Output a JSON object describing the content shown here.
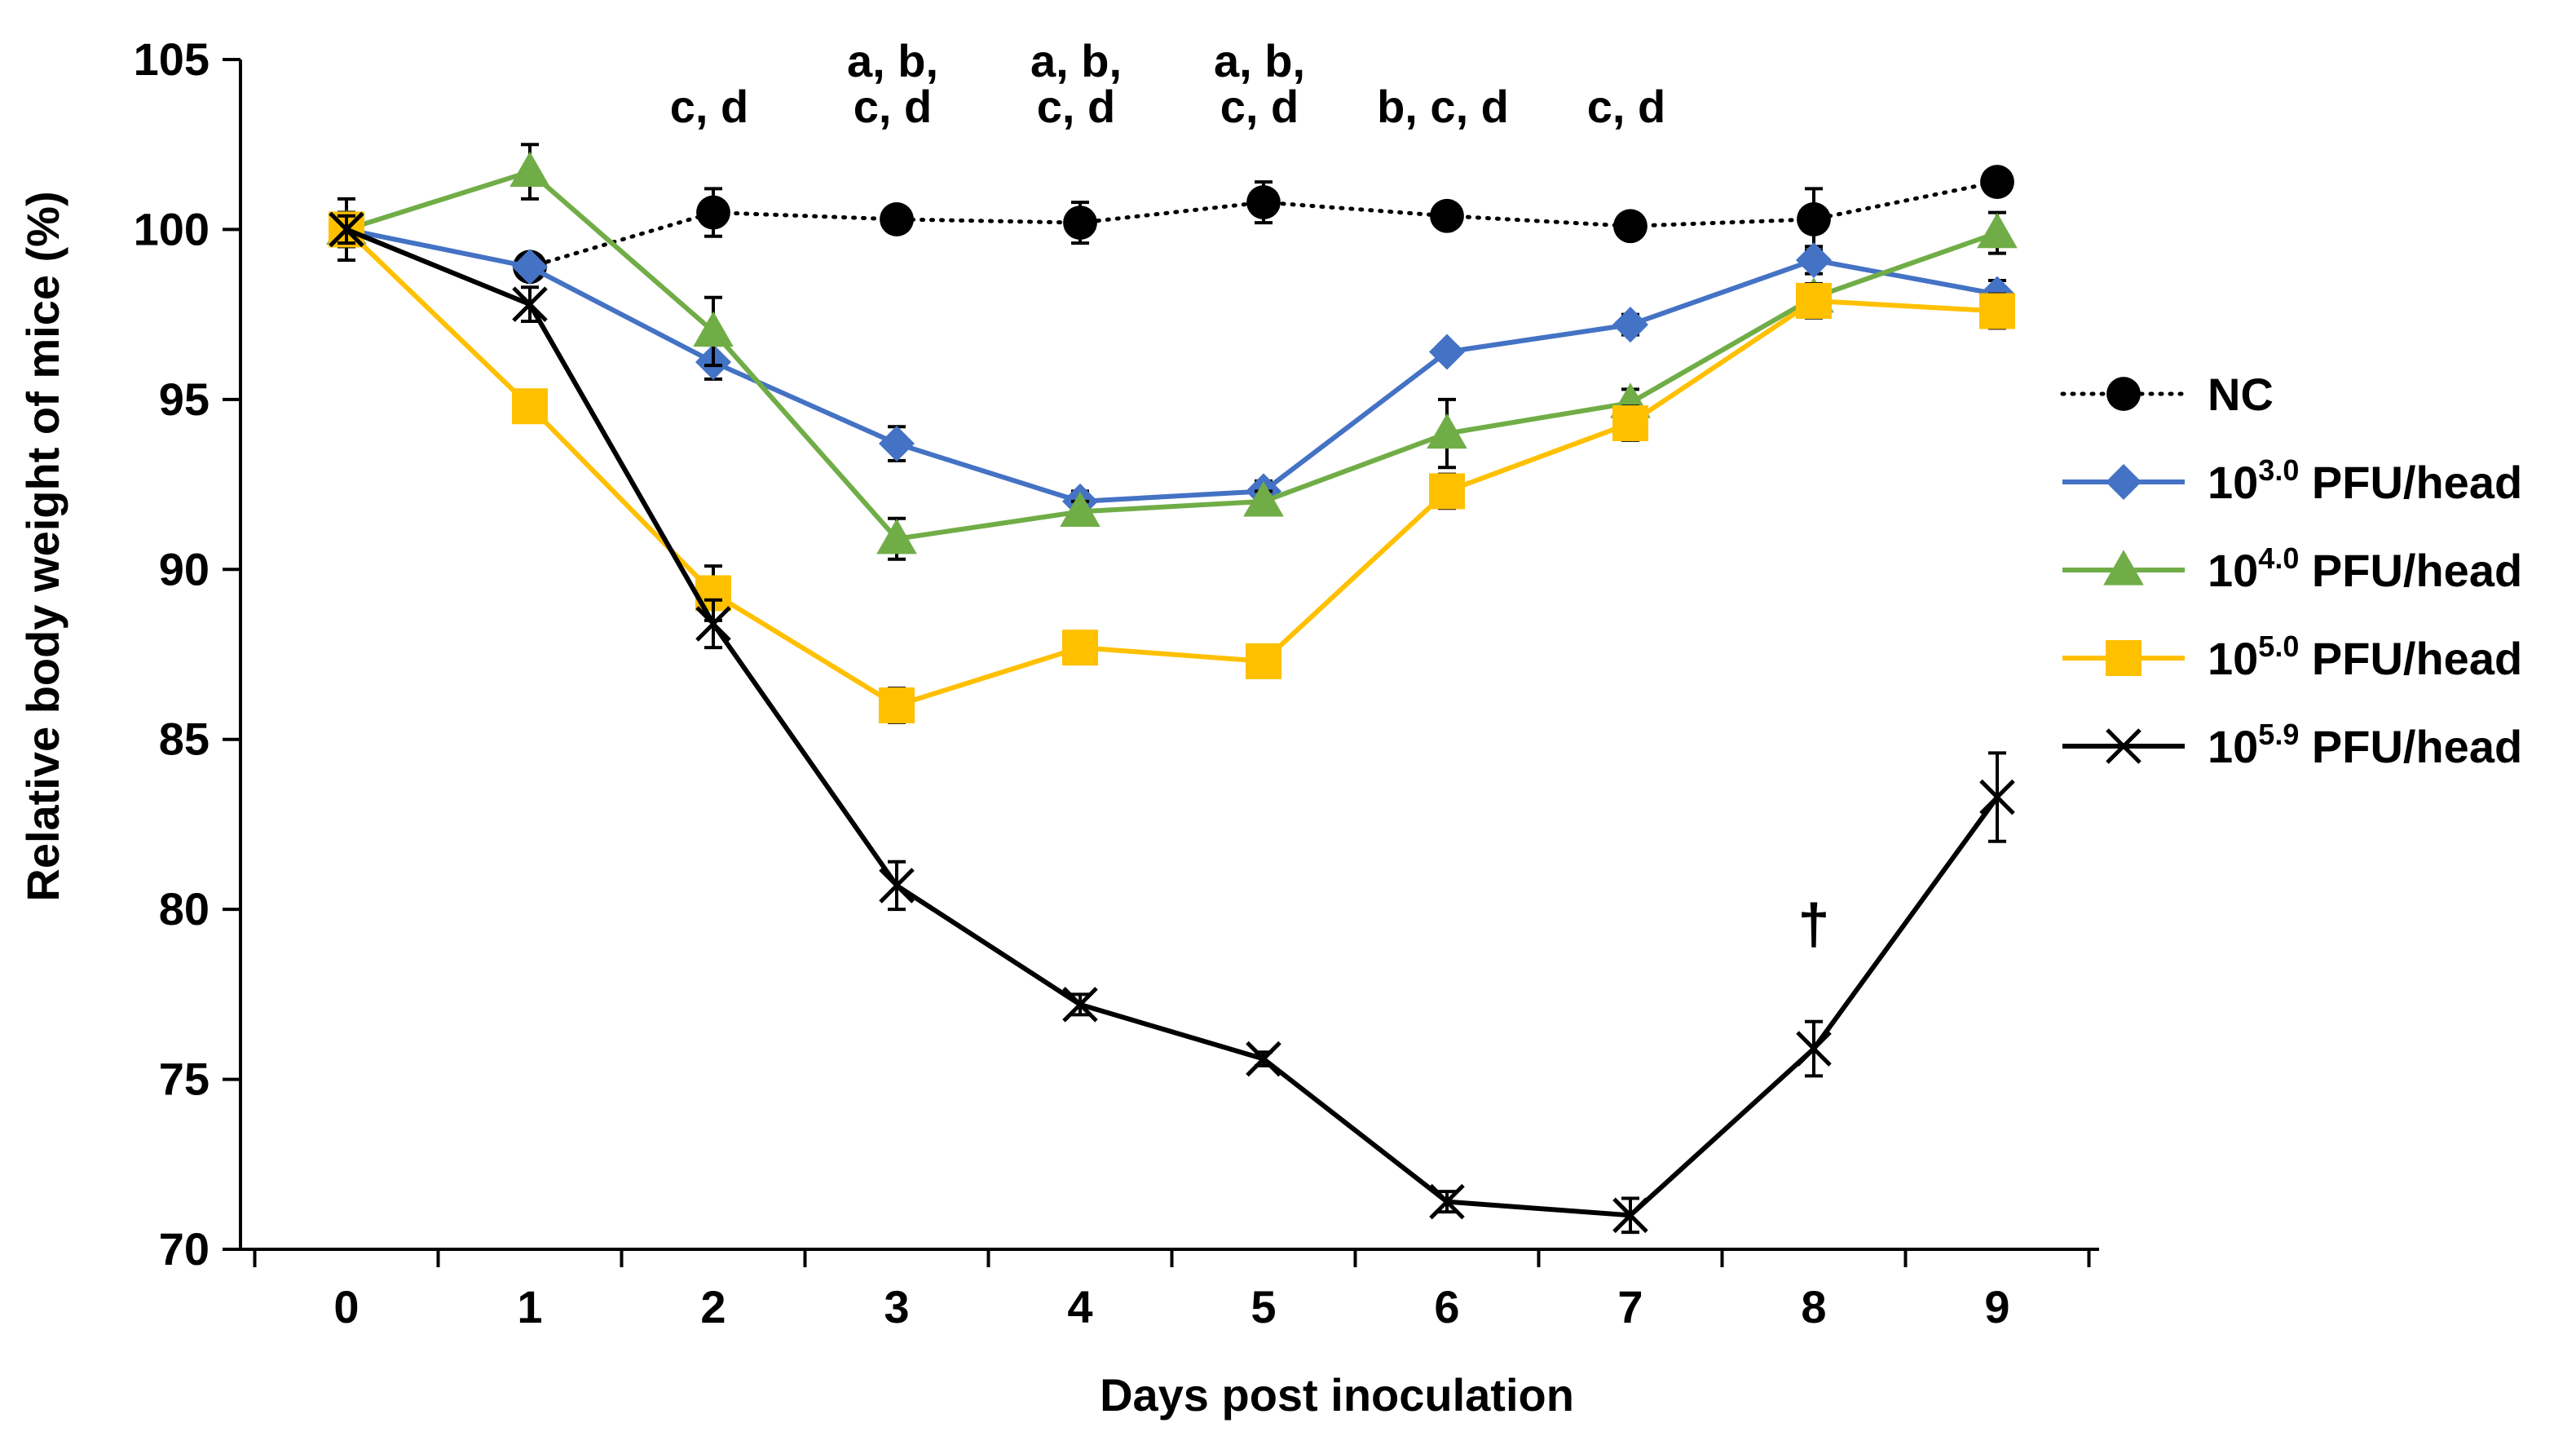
{
  "chart_data": {
    "type": "line",
    "title": "",
    "xlabel": "Days post inoculation",
    "ylabel": "Relative body weight of mice (%)",
    "x": [
      0,
      1,
      2,
      3,
      4,
      5,
      6,
      7,
      8,
      9
    ],
    "x_tick_labels": [
      "0",
      "1",
      "2",
      "3",
      "4",
      "5",
      "6",
      "7",
      "8",
      "9"
    ],
    "ylim": [
      70,
      105
    ],
    "y_ticks": [
      70,
      75,
      80,
      85,
      90,
      95,
      100,
      105
    ],
    "y_tick_labels": [
      "70",
      "75",
      "80",
      "85",
      "90",
      "95",
      "100",
      "105"
    ],
    "legend_position": "right",
    "series": [
      {
        "name": "NC",
        "label_base": "NC",
        "label_sup": "",
        "label_rest": "",
        "color": "#000000",
        "line_style": "dotted",
        "marker": "circle",
        "values": [
          100,
          98.9,
          100.5,
          100.3,
          100.2,
          100.8,
          100.4,
          100.1,
          100.3,
          101.4
        ],
        "errors": [
          0.9,
          0.3,
          0.7,
          0.3,
          0.6,
          0.6,
          0.3,
          0.3,
          0.9,
          0.3
        ]
      },
      {
        "name": "10^3.0 PFU/head",
        "label_base": "10",
        "label_sup": "3.0",
        "label_rest": " PFU/head",
        "color": "#4472C4",
        "line_style": "solid",
        "marker": "diamond",
        "values": [
          100,
          98.9,
          96.1,
          93.7,
          92.0,
          92.3,
          96.4,
          97.2,
          99.1,
          98.1
        ],
        "errors": [
          0.5,
          0.3,
          0.5,
          0.5,
          0.3,
          0.3,
          0.2,
          0.3,
          0.4,
          0.4
        ]
      },
      {
        "name": "10^4.0 PFU/head",
        "label_base": "10",
        "label_sup": "4.0",
        "label_rest": " PFU/head",
        "color": "#70AD47",
        "line_style": "solid",
        "marker": "triangle",
        "values": [
          100,
          101.7,
          97.0,
          90.9,
          91.7,
          92.0,
          94.0,
          94.9,
          98.0,
          99.9
        ],
        "errors": [
          0.5,
          0.8,
          1.0,
          0.6,
          0.3,
          0.3,
          1.0,
          0.4,
          0.4,
          0.6
        ]
      },
      {
        "name": "10^5.0 PFU/head",
        "label_base": "10",
        "label_sup": "5.0",
        "label_rest": " PFU/head",
        "color": "#FFC000",
        "line_style": "solid",
        "marker": "square",
        "values": [
          100,
          94.8,
          89.3,
          86.0,
          87.7,
          87.3,
          92.3,
          94.3,
          97.9,
          97.6
        ],
        "errors": [
          0.5,
          0.2,
          0.8,
          0.5,
          0.3,
          0.3,
          0.5,
          0.5,
          0.5,
          0.5
        ]
      },
      {
        "name": "10^5.9 PFU/head",
        "label_base": "10",
        "label_sup": "5.9",
        "label_rest": " PFU/head",
        "color": "#000000",
        "line_style": "solid",
        "marker": "x",
        "values": [
          100,
          97.8,
          88.4,
          80.7,
          77.2,
          75.6,
          71.4,
          71.0,
          75.9,
          83.3
        ],
        "errors": [
          0.4,
          0.5,
          0.7,
          0.7,
          0.3,
          0.2,
          0.3,
          0.5,
          0.8,
          1.3
        ]
      }
    ],
    "annotations": [
      {
        "x": 2,
        "lines": [
          "c, d"
        ]
      },
      {
        "x": 3,
        "lines": [
          "a, b,",
          "c, d"
        ]
      },
      {
        "x": 4,
        "lines": [
          "a, b,",
          "c, d"
        ]
      },
      {
        "x": 5,
        "lines": [
          "a, b,",
          "c, d"
        ]
      },
      {
        "x": 6,
        "lines": [
          "b, c, d"
        ]
      },
      {
        "x": 7,
        "lines": [
          "c, d"
        ]
      },
      {
        "x": 8,
        "y": 79,
        "lines": [
          "†"
        ]
      }
    ]
  }
}
